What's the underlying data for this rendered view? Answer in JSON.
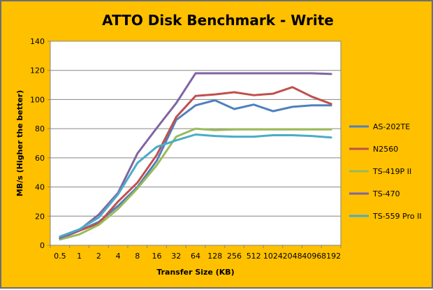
{
  "chart_data": {
    "type": "line",
    "title": "ATTO Disk Benchmark - Write",
    "xlabel": "Transfer Size (KB)",
    "ylabel": "MB/s (Higher the better)",
    "ylim": [
      0,
      140
    ],
    "yticks": [
      0,
      20,
      40,
      60,
      80,
      100,
      120,
      140
    ],
    "grid": true,
    "legend_position": "right",
    "categories": [
      "0.5",
      "1",
      "2",
      "4",
      "8",
      "16",
      "32",
      "64",
      "128",
      "256",
      "512",
      "1024",
      "2048",
      "4096",
      "8192"
    ],
    "series": [
      {
        "name": "AS-202TE",
        "color": "#4f81bd",
        "values": [
          5,
          10,
          16,
          27,
          40,
          58,
          86,
          96,
          99.5,
          93.5,
          96.5,
          92,
          95,
          96,
          96
        ]
      },
      {
        "name": "N2560",
        "color": "#c0504d",
        "values": [
          4.5,
          10,
          15,
          30,
          43,
          62,
          88,
          102.5,
          103.5,
          105,
          103,
          104,
          108.5,
          102,
          97
        ]
      },
      {
        "name": "TS-419P II",
        "color": "#9bbb59",
        "values": [
          4,
          7.5,
          14,
          25,
          39,
          55,
          74.5,
          80,
          79,
          79.5,
          79.5,
          79.5,
          79.5,
          79.5,
          79.5
        ]
      },
      {
        "name": "TS-470",
        "color": "#8064a2",
        "values": [
          5,
          10.5,
          21,
          36,
          63,
          80.5,
          97.5,
          118,
          118,
          118,
          118,
          118,
          118,
          118,
          117.5
        ]
      },
      {
        "name": "TS-559 Pro II",
        "color": "#4bacc6",
        "values": [
          6,
          11,
          19,
          35,
          56.5,
          67.5,
          72,
          76,
          75,
          74.5,
          74.5,
          75.5,
          75.5,
          75,
          74
        ]
      }
    ]
  }
}
